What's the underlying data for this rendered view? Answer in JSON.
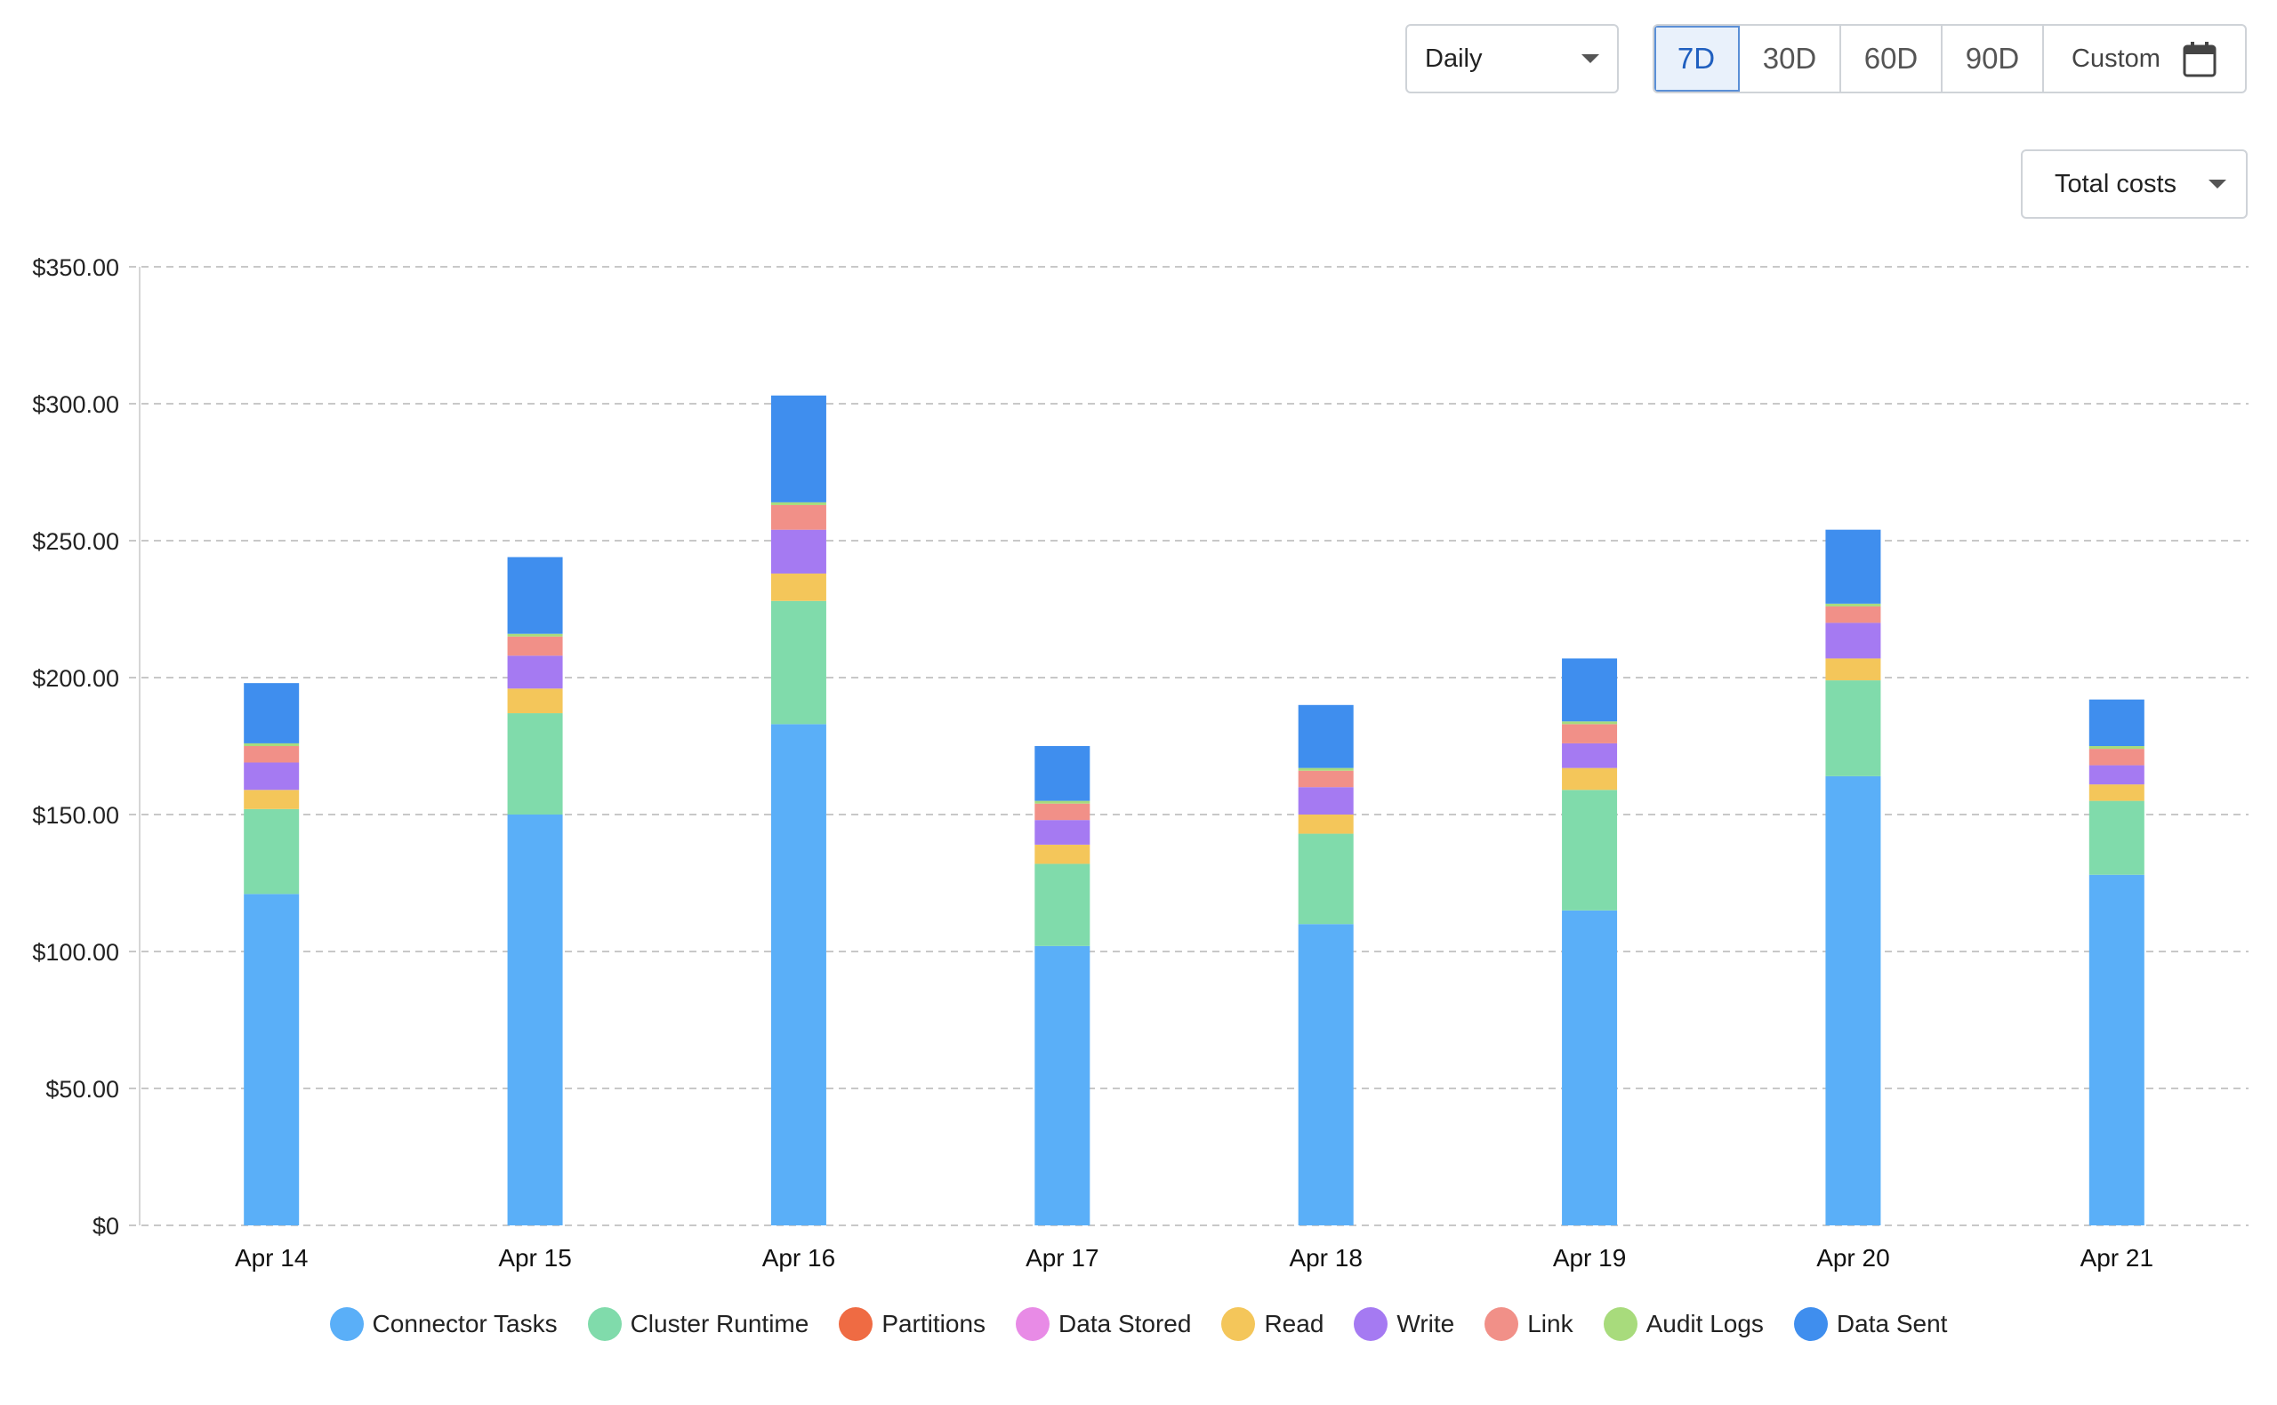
{
  "controls": {
    "granularity": {
      "value": "Daily"
    },
    "ranges": [
      {
        "label": "7D",
        "active": true
      },
      {
        "label": "30D",
        "active": false
      },
      {
        "label": "60D",
        "active": false
      },
      {
        "label": "90D",
        "active": false
      }
    ],
    "custom_label": "Custom",
    "metric": {
      "value": "Total costs"
    }
  },
  "chart_data": {
    "type": "bar",
    "stacked": true,
    "categories": [
      "Apr 14",
      "Apr 15",
      "Apr 16",
      "Apr 17",
      "Apr 18",
      "Apr 19",
      "Apr 20",
      "Apr 21"
    ],
    "ylim": [
      0,
      350
    ],
    "yticks": [
      "$0",
      "$50.00",
      "$100.00",
      "$150.00",
      "$200.00",
      "$250.00",
      "$300.00",
      "$350.00"
    ],
    "grid": true,
    "legend_position": "bottom",
    "series": [
      {
        "name": "Connector Tasks",
        "color": "#5aaff8",
        "values": [
          121,
          150,
          183,
          102,
          110,
          115,
          164,
          128
        ]
      },
      {
        "name": "Cluster Runtime",
        "color": "#80dbab",
        "values": [
          31,
          37,
          45,
          30,
          33,
          44,
          35,
          27
        ]
      },
      {
        "name": "Partitions",
        "color": "#ef6b43",
        "values": [
          0,
          0,
          0,
          0,
          0,
          0,
          0,
          0
        ]
      },
      {
        "name": "Data Stored",
        "color": "#e88be6",
        "values": [
          0,
          0,
          0,
          0,
          0,
          0,
          0,
          0
        ]
      },
      {
        "name": "Read",
        "color": "#f4c65a",
        "values": [
          7,
          9,
          10,
          7,
          7,
          8,
          8,
          6
        ]
      },
      {
        "name": "Write",
        "color": "#a57af2",
        "values": [
          10,
          12,
          16,
          9,
          10,
          9,
          13,
          7
        ]
      },
      {
        "name": "Link",
        "color": "#f19088",
        "values": [
          6,
          7,
          9,
          6,
          6,
          7,
          6,
          6
        ]
      },
      {
        "name": "Audit Logs",
        "color": "#a8db7c",
        "values": [
          1,
          1,
          1,
          1,
          1,
          1,
          1,
          1
        ]
      },
      {
        "name": "Data Sent",
        "color": "#3f8eee",
        "values": [
          22,
          28,
          39,
          20,
          23,
          23,
          27,
          17
        ]
      }
    ]
  }
}
